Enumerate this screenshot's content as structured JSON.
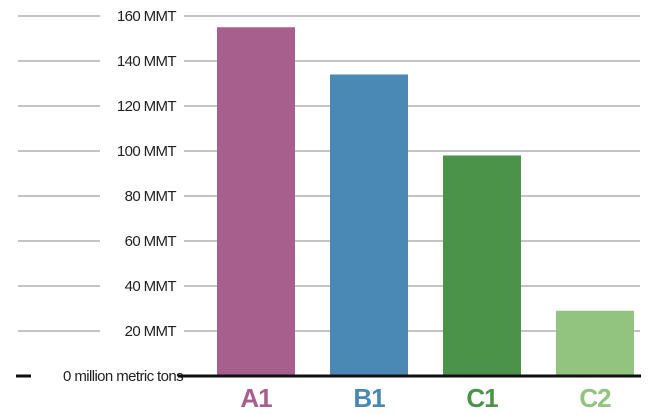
{
  "chart_data": {
    "type": "bar",
    "categories": [
      "A1",
      "B1",
      "C1",
      "C2"
    ],
    "values": [
      155,
      134,
      98,
      29
    ],
    "category_colors": [
      "#a7608e",
      "#4a88b5",
      "#4b9349",
      "#92c47f"
    ],
    "ylim": [
      0,
      160
    ],
    "yticks": [
      {
        "value": 0,
        "label": "0 million metric tons"
      },
      {
        "value": 20,
        "label": "20 MMT"
      },
      {
        "value": 40,
        "label": "40 MMT"
      },
      {
        "value": 60,
        "label": "60 MMT"
      },
      {
        "value": 80,
        "label": "80 MMT"
      },
      {
        "value": 100,
        "label": "100 MMT"
      },
      {
        "value": 120,
        "label": "120 MMT"
      },
      {
        "value": 140,
        "label": "140 MMT"
      },
      {
        "value": 160,
        "label": "160 MMT"
      }
    ],
    "grid": true,
    "legend": "none"
  }
}
